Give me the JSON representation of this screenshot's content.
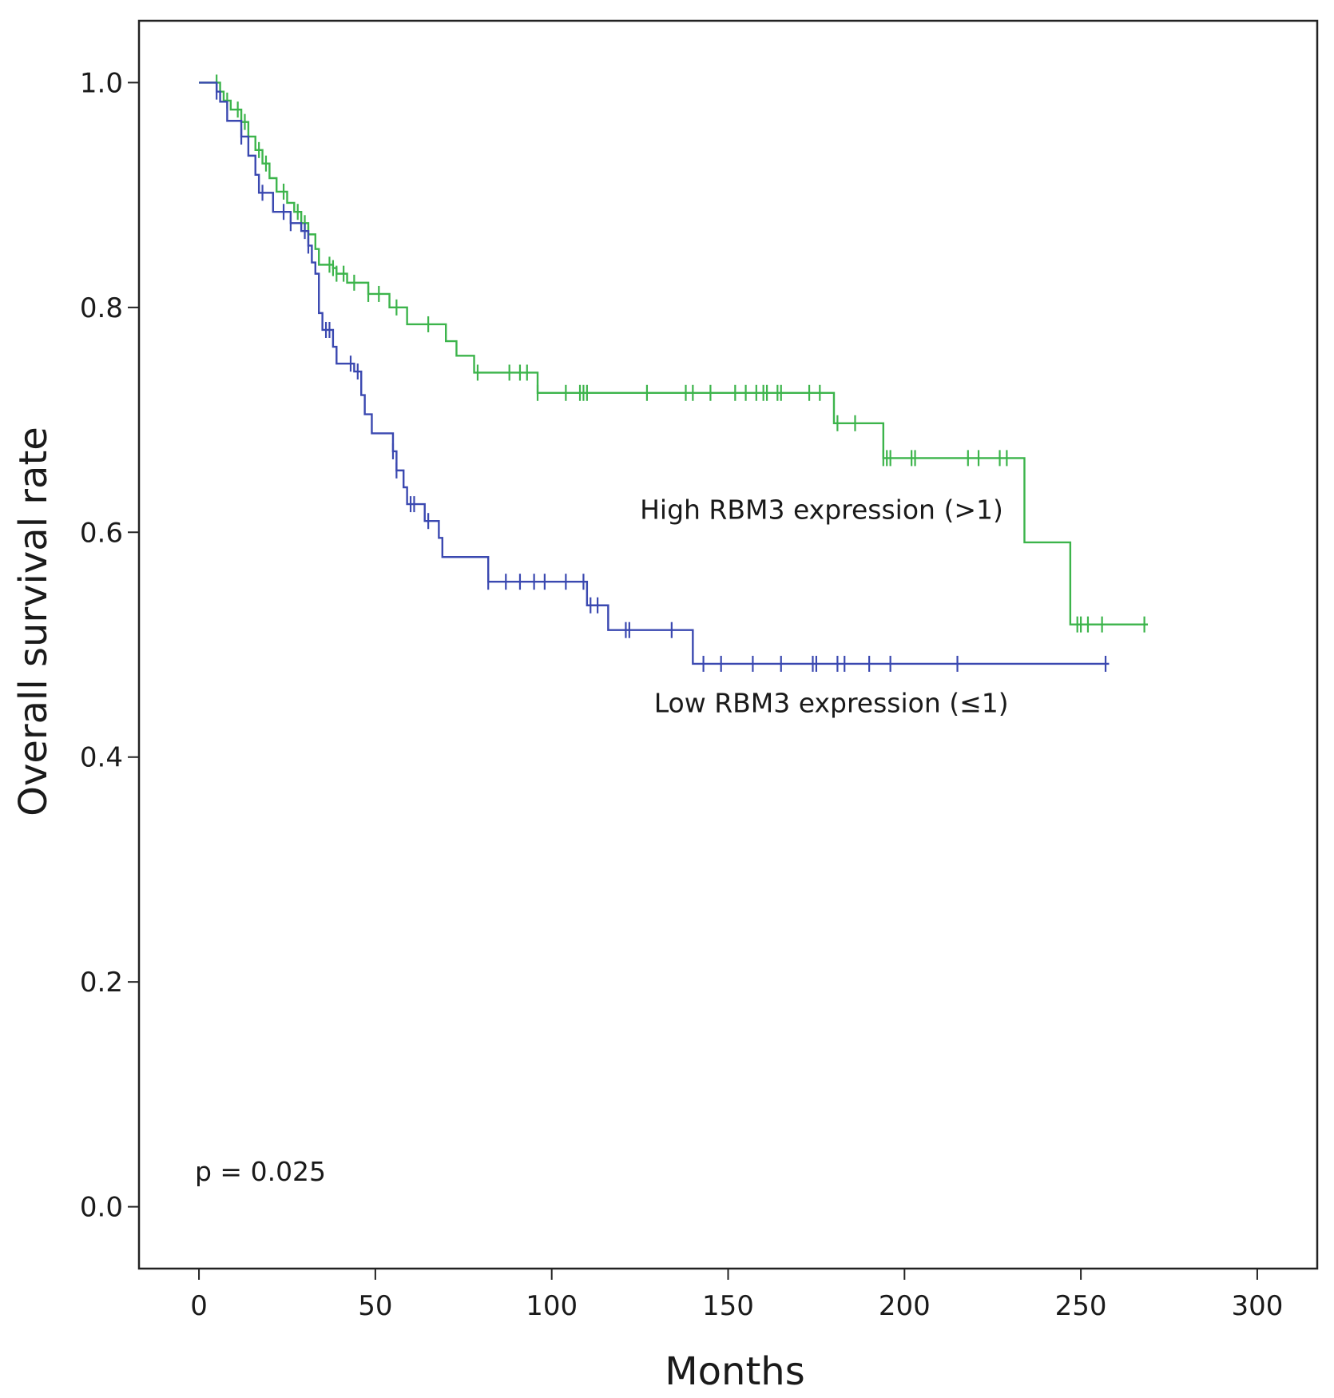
{
  "chart_data": {
    "type": "line",
    "subtype": "kaplan-meier",
    "xlabel": "Months",
    "ylabel": "Overall survival rate",
    "xlim": [
      -17,
      317
    ],
    "ylim": [
      -0.055,
      1.055
    ],
    "xticks": [
      0,
      50,
      100,
      150,
      200,
      250,
      300
    ],
    "yticks": [
      0.0,
      0.2,
      0.4,
      0.6,
      0.8,
      1.0
    ],
    "xtick_labels": [
      "0",
      "50",
      "100",
      "150",
      "200",
      "250",
      "300"
    ],
    "ytick_labels": [
      "0.0",
      "0.2",
      "0.4",
      "0.6",
      "0.8",
      "1.0"
    ],
    "p_value_text": "p = 0.025",
    "series": [
      {
        "name": "High RBM3 expression (>1)",
        "label": "High RBM3 expression (>1)",
        "label_anchor": [
          125,
          0.612
        ],
        "color": "#3cb44b",
        "steps": [
          [
            0,
            1.0
          ],
          [
            6,
            0.992
          ],
          [
            7,
            0.984
          ],
          [
            9,
            0.976
          ],
          [
            12,
            0.965
          ],
          [
            14,
            0.952
          ],
          [
            16,
            0.94
          ],
          [
            18,
            0.928
          ],
          [
            20,
            0.915
          ],
          [
            22,
            0.903
          ],
          [
            25,
            0.893
          ],
          [
            27,
            0.885
          ],
          [
            29,
            0.875
          ],
          [
            31,
            0.865
          ],
          [
            33,
            0.852
          ],
          [
            34,
            0.838
          ],
          [
            38,
            0.835
          ],
          [
            39,
            0.83
          ],
          [
            42,
            0.822
          ],
          [
            48,
            0.812
          ],
          [
            54,
            0.8
          ],
          [
            59,
            0.785
          ],
          [
            70,
            0.77
          ],
          [
            73,
            0.757
          ],
          [
            78,
            0.742
          ],
          [
            96,
            0.724
          ],
          [
            180,
            0.697
          ],
          [
            194,
            0.666
          ],
          [
            234,
            0.591
          ],
          [
            247,
            0.518
          ],
          [
            269,
            0.518
          ]
        ],
        "censor": [
          5,
          8,
          11,
          13,
          17,
          19,
          24,
          28,
          30,
          31,
          37,
          38,
          39,
          41,
          44,
          48,
          51,
          56,
          65,
          79,
          88,
          91,
          93,
          96,
          104,
          108,
          109,
          110,
          127,
          138,
          140,
          145,
          152,
          155,
          158,
          160,
          161,
          164,
          165,
          173,
          176,
          181,
          186,
          194,
          195,
          196,
          202,
          203,
          218,
          221,
          227,
          229,
          249,
          250,
          252,
          256,
          268
        ]
      },
      {
        "name": "Low RBM3 expression (≤1)",
        "label": "Low RBM3 expression (≤1)",
        "label_anchor": [
          129,
          0.44
        ],
        "color": "#3a48b0",
        "steps": [
          [
            0,
            1.0
          ],
          [
            5,
            0.992
          ],
          [
            6,
            0.983
          ],
          [
            8,
            0.966
          ],
          [
            12,
            0.952
          ],
          [
            14,
            0.935
          ],
          [
            16,
            0.918
          ],
          [
            17,
            0.902
          ],
          [
            21,
            0.885
          ],
          [
            26,
            0.875
          ],
          [
            29,
            0.868
          ],
          [
            31,
            0.855
          ],
          [
            32,
            0.84
          ],
          [
            33,
            0.83
          ],
          [
            34,
            0.795
          ],
          [
            35,
            0.78
          ],
          [
            38,
            0.765
          ],
          [
            39,
            0.75
          ],
          [
            44,
            0.743
          ],
          [
            46,
            0.722
          ],
          [
            47,
            0.705
          ],
          [
            49,
            0.688
          ],
          [
            55,
            0.672
          ],
          [
            56,
            0.655
          ],
          [
            58,
            0.64
          ],
          [
            59,
            0.625
          ],
          [
            64,
            0.61
          ],
          [
            68,
            0.595
          ],
          [
            69,
            0.578
          ],
          [
            82,
            0.556
          ],
          [
            110,
            0.535
          ],
          [
            116,
            0.513
          ],
          [
            140,
            0.483
          ],
          [
            258,
            0.483
          ]
        ],
        "censor": [
          5,
          12,
          18,
          24,
          26,
          30,
          31,
          36,
          37,
          43,
          45,
          55,
          56,
          60,
          61,
          65,
          82,
          87,
          91,
          95,
          98,
          104,
          109,
          111,
          113,
          121,
          122,
          134,
          143,
          148,
          157,
          165,
          174,
          175,
          181,
          183,
          190,
          196,
          215,
          257
        ]
      }
    ]
  }
}
